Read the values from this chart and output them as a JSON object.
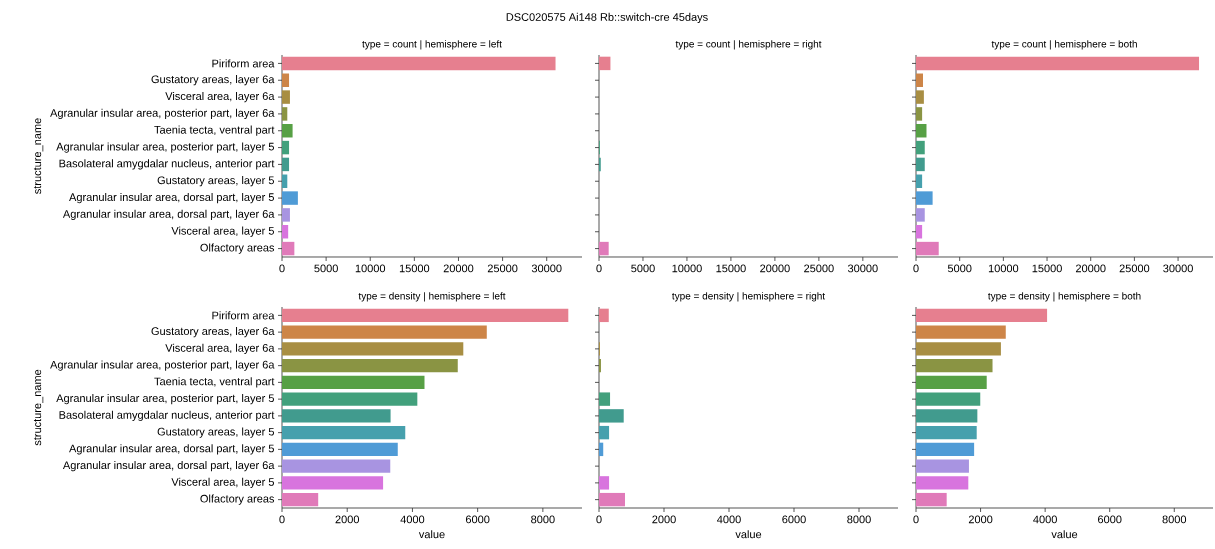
{
  "chart_data": [
    {
      "type": "bar",
      "orientation": "horizontal",
      "title": "type = count | hemisphere = left",
      "ylabel": "structure_name",
      "categories": [
        "Piriform area",
        "Gustatory areas, layer 6a",
        "Visceral area, layer 6a",
        "Agranular insular area, posterior part, layer 6a",
        "Taenia tecta, ventral part",
        "Agranular insular area, posterior part, layer 5",
        "Basolateral amygdalar nucleus, anterior part",
        "Gustatory areas, layer 5",
        "Agranular insular area, dorsal part, layer 5",
        "Agranular insular area, dorsal part, layer 6a",
        "Visceral area, layer 5",
        "Olfactory areas"
      ],
      "values": [
        31000,
        800,
        900,
        600,
        1200,
        800,
        800,
        600,
        1800,
        900,
        700,
        1400
      ],
      "colors": [
        "#e67f8f",
        "#cd8548",
        "#a88e43",
        "#8a9443",
        "#57a045",
        "#42a07c",
        "#419b8e",
        "#46a0ad",
        "#4f9bd6",
        "#a894e1",
        "#d874de",
        "#e07ab9"
      ],
      "xlim": [
        0,
        34000
      ],
      "xticks": [
        0,
        5000,
        10000,
        15000,
        20000,
        25000,
        30000
      ],
      "annotations": [
        "DSC020575 Ai148 Rb::switch-cre 45days"
      ]
    },
    {
      "type": "bar",
      "orientation": "horizontal",
      "title": "type = count | hemisphere = right",
      "tick_labels": "x",
      "categories": [
        null,
        null,
        null,
        null,
        null,
        null,
        null,
        null,
        null,
        null,
        null,
        null
      ],
      "values": [
        1300,
        0,
        0,
        0,
        0,
        100,
        200,
        0,
        0,
        0,
        0,
        1100
      ],
      "colors": [
        "#e67f8f",
        "#cd8548",
        "#a88e43",
        "#8a9443",
        "#57a045",
        "#42a07c",
        "#419b8e",
        "#46a0ad",
        "#4f9bd6",
        "#a894e1",
        "#d874de",
        "#e07ab9"
      ],
      "xlim": [
        0,
        34000
      ],
      "xticks": [
        0,
        5000,
        10000,
        15000,
        20000,
        25000,
        30000
      ]
    },
    {
      "type": "bar",
      "orientation": "horizontal",
      "title": "type = count | hemisphere = both",
      "tick_labels": "x",
      "categories": [
        null,
        null,
        null,
        null,
        null,
        null,
        null,
        null,
        null,
        null,
        null,
        null
      ],
      "values": [
        32400,
        800,
        900,
        700,
        1200,
        1000,
        1000,
        700,
        1900,
        1000,
        700,
        2600
      ],
      "colors": [
        "#e67f8f",
        "#cd8548",
        "#a88e43",
        "#8a9443",
        "#57a045",
        "#42a07c",
        "#419b8e",
        "#46a0ad",
        "#4f9bd6",
        "#a894e1",
        "#d874de",
        "#e07ab9"
      ],
      "xlim": [
        0,
        34000
      ],
      "xticks": [
        0,
        5000,
        10000,
        15000,
        20000,
        25000,
        30000
      ]
    },
    {
      "type": "bar",
      "orientation": "horizontal",
      "title": "type = density | hemisphere = left",
      "ylabel": "structure_name",
      "xlabel": "value",
      "categories": [
        "Piriform area",
        "Gustatory areas, layer 6a",
        "Visceral area, layer 6a",
        "Agranular insular area, posterior part, layer 6a",
        "Taenia tecta, ventral part",
        "Agranular insular area, posterior part, layer 5",
        "Basolateral amygdalar nucleus, anterior part",
        "Gustatory areas, layer 5",
        "Agranular insular area, dorsal part, layer 5",
        "Agranular insular area, dorsal part, layer 6a",
        "Visceral area, layer 5",
        "Olfactory areas"
      ],
      "values": [
        8780,
        6280,
        5560,
        5390,
        4370,
        4150,
        3330,
        3780,
        3550,
        3320,
        3100,
        1110
      ],
      "colors": [
        "#e67f8f",
        "#cd8548",
        "#a88e43",
        "#8a9443",
        "#57a045",
        "#42a07c",
        "#419b8e",
        "#46a0ad",
        "#4f9bd6",
        "#a894e1",
        "#d874de",
        "#e07ab9"
      ],
      "xlim": [
        0,
        9200
      ],
      "xticks": [
        0,
        2000,
        4000,
        6000,
        8000
      ]
    },
    {
      "type": "bar",
      "orientation": "horizontal",
      "title": "type = density | hemisphere = right",
      "xlabel": "value",
      "tick_labels": "x",
      "categories": [
        null,
        null,
        null,
        null,
        null,
        null,
        null,
        null,
        null,
        null,
        null,
        null
      ],
      "values": [
        300,
        0,
        30,
        60,
        0,
        340,
        760,
        310,
        130,
        0,
        310,
        800
      ],
      "colors": [
        "#e67f8f",
        "#cd8548",
        "#a88e43",
        "#8a9443",
        "#57a045",
        "#42a07c",
        "#419b8e",
        "#46a0ad",
        "#4f9bd6",
        "#a894e1",
        "#d874de",
        "#e07ab9"
      ],
      "xlim": [
        0,
        9200
      ],
      "xticks": [
        0,
        2000,
        4000,
        6000,
        8000
      ]
    },
    {
      "type": "bar",
      "orientation": "horizontal",
      "title": "type = density | hemisphere = both",
      "xlabel": "value",
      "tick_labels": "x",
      "categories": [
        null,
        null,
        null,
        null,
        null,
        null,
        null,
        null,
        null,
        null,
        null,
        null
      ],
      "values": [
        4060,
        2780,
        2630,
        2370,
        2190,
        1990,
        1900,
        1880,
        1800,
        1640,
        1620,
        950
      ],
      "colors": [
        "#e67f8f",
        "#cd8548",
        "#a88e43",
        "#8a9443",
        "#57a045",
        "#42a07c",
        "#419b8e",
        "#46a0ad",
        "#4f9bd6",
        "#a894e1",
        "#d874de",
        "#e07ab9"
      ],
      "xlim": [
        0,
        9200
      ],
      "xticks": [
        0,
        2000,
        4000,
        6000,
        8000
      ]
    }
  ]
}
